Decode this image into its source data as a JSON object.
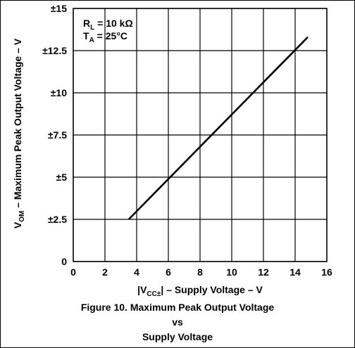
{
  "chart_data": {
    "type": "line",
    "title": "Figure 10. Maximum Peak Output Voltage",
    "title_line2": "vs",
    "title_line3": "Supply Voltage",
    "ylabel_main": "V",
    "ylabel_sub": "OM",
    "ylabel_rest": " – Maximum Peak Output Voltage – V",
    "xlabel_prefix": "|V",
    "xlabel_sub": "CC±",
    "xlabel_rest": "| – Supply Voltage – V",
    "annotations": {
      "rl_main": "R",
      "rl_sub": "L",
      "rl_rest": " = 10 kΩ",
      "ta_main": "T",
      "ta_sub": "A",
      "ta_rest": " = 25°C"
    },
    "xlim": [
      0,
      16
    ],
    "ylim": [
      0,
      15
    ],
    "x_ticks": [
      0,
      2,
      4,
      6,
      8,
      10,
      12,
      14,
      16
    ],
    "x_tick_labels": [
      "0",
      "2",
      "4",
      "6",
      "8",
      "10",
      "12",
      "14",
      "16"
    ],
    "y_ticks": [
      0,
      2.5,
      5,
      7.5,
      10,
      12.5,
      15
    ],
    "y_tick_labels": [
      "0",
      "±2.5",
      "±5",
      "±7.5",
      "±10",
      "±12.5",
      "±15"
    ],
    "grid": true,
    "series": [
      {
        "x": [
          3.5,
          14.8
        ],
        "y": [
          2.5,
          13.3
        ]
      }
    ]
  }
}
